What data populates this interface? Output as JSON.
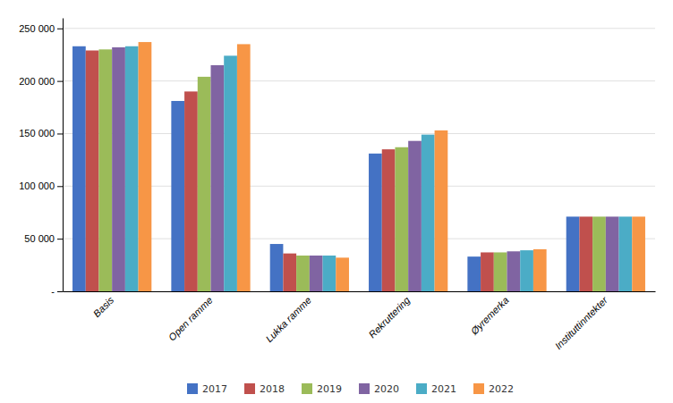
{
  "chart_data": {
    "type": "bar",
    "categories": [
      "Basis",
      "Open ramme",
      "Lukka ramme",
      "Rekruttering",
      "Øyremerka",
      "Instituttinntekter"
    ],
    "series": [
      {
        "name": "2017",
        "color": "#4472c4",
        "values": [
          233000,
          181000,
          45000,
          131000,
          33000,
          71000
        ]
      },
      {
        "name": "2018",
        "color": "#c0504d",
        "values": [
          229000,
          190000,
          36000,
          135000,
          37000,
          71000
        ]
      },
      {
        "name": "2019",
        "color": "#9bbb59",
        "values": [
          230000,
          204000,
          34000,
          137000,
          37000,
          71000
        ]
      },
      {
        "name": "2020",
        "color": "#8064a2",
        "values": [
          232000,
          215000,
          34000,
          143000,
          38000,
          71000
        ]
      },
      {
        "name": "2021",
        "color": "#4bacc6",
        "values": [
          233000,
          224000,
          34000,
          149000,
          39000,
          71000
        ]
      },
      {
        "name": "2022",
        "color": "#f79646",
        "values": [
          237000,
          235000,
          32000,
          153000,
          40000,
          71000
        ]
      }
    ],
    "ylim": [
      0,
      260000
    ],
    "yticks": [
      {
        "value": 0,
        "label": "-"
      },
      {
        "value": 50000,
        "label": "50 000"
      },
      {
        "value": 100000,
        "label": "100 000"
      },
      {
        "value": 150000,
        "label": "150 000"
      },
      {
        "value": 200000,
        "label": "200 000"
      },
      {
        "value": 250000,
        "label": "250 000"
      }
    ],
    "grid": true,
    "legend": "bottom"
  }
}
